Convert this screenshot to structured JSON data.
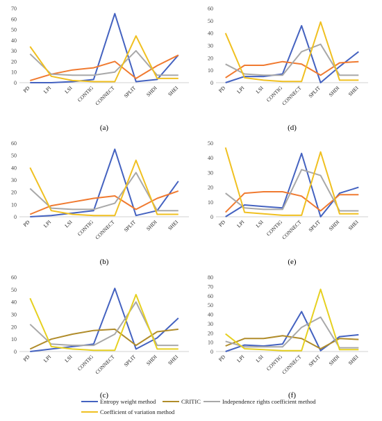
{
  "categories": [
    "PD",
    "LPI",
    "LSI",
    "CONTIG",
    "CONNECT",
    "SPLIT",
    "SHDI",
    "SHEI"
  ],
  "legend": [
    {
      "name": "Entropy weight method",
      "color": "#4462C0"
    },
    {
      "name": "CRITIC",
      "color": "#B08C2A"
    },
    {
      "name": "Independence rights coefficient method",
      "color": "#A8A8A8"
    },
    {
      "name": "Coefficient of variation method",
      "color": "#F0C020"
    }
  ],
  "chart_data": [
    {
      "type": "line",
      "panel_label": "(a)",
      "ylim": [
        0,
        70
      ],
      "yticks": [
        0,
        10,
        20,
        30,
        40,
        50,
        60,
        70
      ],
      "categories": [
        "PD",
        "LPI",
        "LSI",
        "CONTIG",
        "CONNECT",
        "SPLIT",
        "SHDI",
        "SHEI"
      ],
      "series": [
        {
          "name": "Entropy weight method",
          "color": "#4462C0",
          "values": [
            0,
            0,
            1,
            3,
            65,
            1,
            3,
            26
          ]
        },
        {
          "name": "CRITIC",
          "color": "#F07A30",
          "values": [
            2,
            8,
            12,
            14,
            20,
            4,
            16,
            26
          ]
        },
        {
          "name": "Independence rights coefficient method",
          "color": "#A8A8A8",
          "values": [
            27,
            8,
            7,
            7,
            10,
            30,
            7,
            7
          ]
        },
        {
          "name": "Coefficient of variation method",
          "color": "#F0C020",
          "values": [
            34,
            6,
            2,
            1,
            1,
            44,
            4,
            4
          ]
        }
      ]
    },
    {
      "type": "line",
      "panel_label": "(d)",
      "ylim": [
        0,
        60
      ],
      "yticks": [
        0,
        10,
        20,
        30,
        40,
        50,
        60
      ],
      "categories": [
        "PD",
        "LPI",
        "LSI",
        "CONTIG",
        "CONNECT",
        "SPLIT",
        "SHDI",
        "SHEI"
      ],
      "series": [
        {
          "name": "Entropy weight method",
          "color": "#4462C0",
          "values": [
            0,
            5,
            5,
            7,
            46,
            0,
            13,
            25
          ]
        },
        {
          "name": "CRITIC",
          "color": "#F07A30",
          "values": [
            4,
            14,
            14,
            17,
            15,
            6,
            16,
            17
          ]
        },
        {
          "name": "Independence rights coefficient method",
          "color": "#A8A8A8",
          "values": [
            15,
            7,
            6,
            6,
            25,
            31,
            6,
            6
          ]
        },
        {
          "name": "Coefficient of variation method",
          "color": "#F0C020",
          "values": [
            40,
            4,
            2,
            1,
            1,
            49,
            2,
            2
          ]
        }
      ]
    },
    {
      "type": "line",
      "panel_label": "(b)",
      "ylim": [
        0,
        60
      ],
      "yticks": [
        0,
        10,
        20,
        30,
        40,
        50,
        60
      ],
      "categories": [
        "PD",
        "LPI",
        "LSI",
        "CONTIG",
        "CONNECT",
        "SPLIT",
        "SHDI",
        "SHEI"
      ],
      "series": [
        {
          "name": "Entropy weight method",
          "color": "#4462C0",
          "values": [
            0,
            1,
            3,
            5,
            55,
            1,
            5,
            29
          ]
        },
        {
          "name": "CRITIC",
          "color": "#F07A30",
          "values": [
            2,
            9,
            12,
            15,
            17,
            6,
            15,
            21
          ]
        },
        {
          "name": "Independence rights coefficient method",
          "color": "#A8A8A8",
          "values": [
            23,
            7,
            6,
            6,
            11,
            36,
            5,
            5
          ]
        },
        {
          "name": "Coefficient of variation method",
          "color": "#F0C020",
          "values": [
            40,
            5,
            2,
            1,
            1,
            46,
            2,
            2
          ]
        }
      ]
    },
    {
      "type": "line",
      "panel_label": "(e)",
      "ylim": [
        0,
        50
      ],
      "yticks": [
        0,
        10,
        20,
        30,
        40,
        50
      ],
      "categories": [
        "PD",
        "LPI",
        "LSI",
        "CONTIG",
        "CONNECT",
        "SPLIT",
        "SHDI",
        "SHEI"
      ],
      "series": [
        {
          "name": "Entropy weight method",
          "color": "#4462C0",
          "values": [
            0,
            8,
            7,
            6,
            43,
            0,
            16,
            20
          ]
        },
        {
          "name": "CRITIC",
          "color": "#F07A30",
          "values": [
            3,
            16,
            17,
            17,
            14,
            4,
            15,
            15
          ]
        },
        {
          "name": "Independence rights coefficient method",
          "color": "#A8A8A8",
          "values": [
            16,
            6,
            5,
            5,
            32,
            28,
            4,
            4
          ]
        },
        {
          "name": "Coefficient of variation method",
          "color": "#F0C020",
          "values": [
            47,
            3,
            2,
            1,
            1,
            44,
            2,
            2
          ]
        }
      ]
    },
    {
      "type": "line",
      "panel_label": "(c)",
      "ylim": [
        0,
        60
      ],
      "yticks": [
        0,
        10,
        20,
        30,
        40,
        50,
        60
      ],
      "categories": [
        "PD",
        "LPI",
        "LSI",
        "CONTIG",
        "CONNECT",
        "SPLIT",
        "SHDI",
        "SHEI"
      ],
      "series": [
        {
          "name": "Entropy weight method",
          "color": "#4462C0",
          "values": [
            0,
            2,
            4,
            6,
            51,
            2,
            11,
            27
          ]
        },
        {
          "name": "CRITIC",
          "color": "#B08C2A",
          "values": [
            2,
            10,
            14,
            17,
            18,
            5,
            16,
            18
          ]
        },
        {
          "name": "Independence rights coefficient method",
          "color": "#A8A8A8",
          "values": [
            22,
            6,
            5,
            5,
            14,
            40,
            5,
            5
          ]
        },
        {
          "name": "Coefficient of variation method",
          "color": "#E6D020",
          "values": [
            43,
            4,
            2,
            1,
            1,
            46,
            2,
            2
          ]
        }
      ]
    },
    {
      "type": "line",
      "panel_label": "(f)",
      "ylim": [
        0,
        80
      ],
      "yticks": [
        0,
        10,
        20,
        30,
        40,
        50,
        60,
        70,
        80
      ],
      "categories": [
        "PD",
        "LPI",
        "LSI",
        "CONTIG",
        "CONNECT",
        "SPLIT",
        "SHDI",
        "SHEI"
      ],
      "series": [
        {
          "name": "Entropy weight method",
          "color": "#4462C0",
          "values": [
            0,
            7,
            6,
            8,
            43,
            1,
            16,
            18
          ]
        },
        {
          "name": "CRITIC",
          "color": "#B08C2A",
          "values": [
            6,
            14,
            14,
            17,
            14,
            3,
            14,
            13
          ]
        },
        {
          "name": "Independence rights coefficient method",
          "color": "#A8A8A8",
          "values": [
            11,
            5,
            5,
            5,
            26,
            37,
            4,
            4
          ]
        },
        {
          "name": "Coefficient of variation method",
          "color": "#E6D020",
          "values": [
            19,
            3,
            2,
            1,
            1,
            67,
            2,
            2
          ]
        }
      ]
    }
  ]
}
